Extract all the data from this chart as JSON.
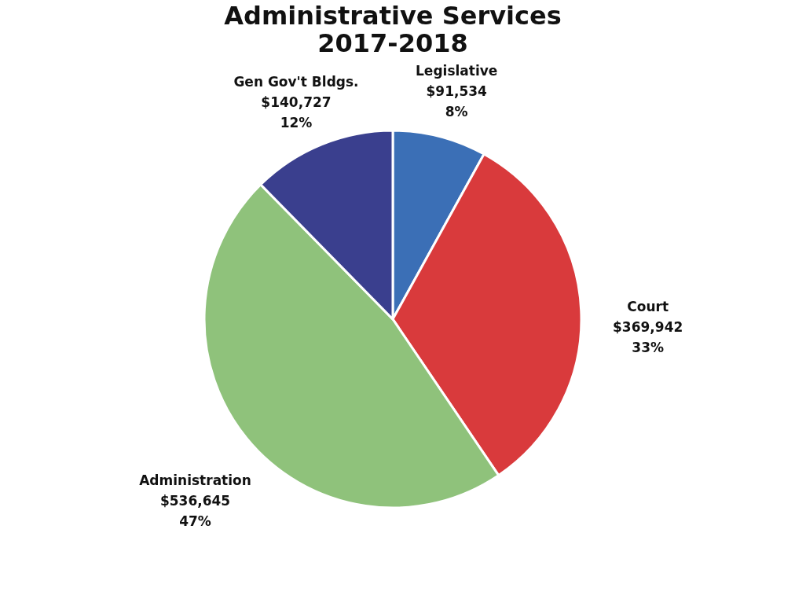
{
  "chart_data": {
    "type": "pie",
    "title": "Administrative Services",
    "subtitle": "2017-2018",
    "categories": [
      "Legislative",
      "Court",
      "Administration",
      "Gen Gov't Bldgs."
    ],
    "values": [
      91534,
      369942,
      536645,
      140727
    ],
    "colors": [
      "#3b6fb6",
      "#d93a3c",
      "#8fc27b",
      "#3a3f8e"
    ],
    "value_labels": [
      "$91,534\n8%",
      "$369,942\n33%",
      "$536,645\n47%",
      "$140,727\n12%"
    ]
  }
}
